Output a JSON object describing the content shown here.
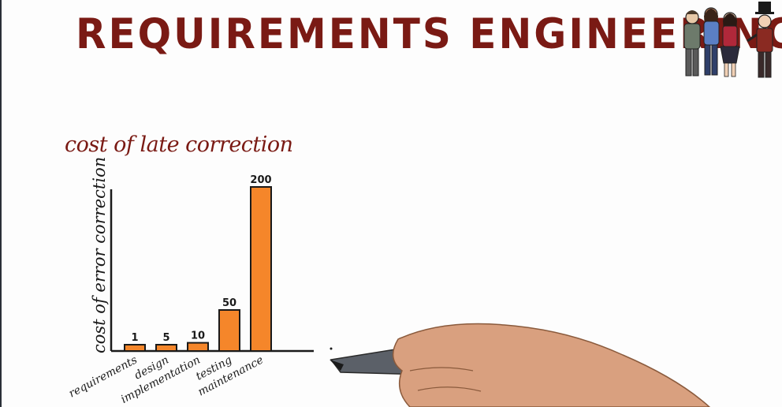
{
  "title": "REQUIREMENTS ENGINEERING",
  "chart_data": {
    "type": "bar",
    "title": "cost of late correction",
    "ylabel": "cost of error correction",
    "xlabel": "",
    "categories": [
      "requirements",
      "design",
      "implementation",
      "testing",
      "maintenance"
    ],
    "values": [
      1,
      5,
      10,
      50,
      200
    ],
    "data_labels": [
      "1",
      "5",
      "10",
      "50",
      "200"
    ],
    "bar_color": "#f5862a",
    "grid": false,
    "legend": "none"
  },
  "colors": {
    "title": "#7a1a14",
    "bar_fill": "#f5862a",
    "ink": "#1a1a1a"
  }
}
